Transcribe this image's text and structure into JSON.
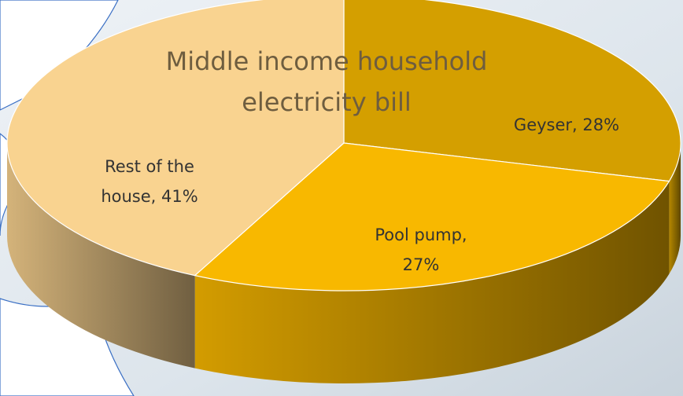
{
  "chart_data": {
    "type": "pie",
    "title": [
      "Middle income household",
      "electricity bill"
    ],
    "values": [
      28,
      27,
      41
    ],
    "value_labels": [
      [
        "Geyser, 28%"
      ],
      [
        "Pool pump,",
        "27%"
      ],
      [
        "Rest of the",
        "house, 41%"
      ]
    ],
    "colors": [
      "#d49f00",
      "#f8b800",
      "#f9d390"
    ]
  }
}
